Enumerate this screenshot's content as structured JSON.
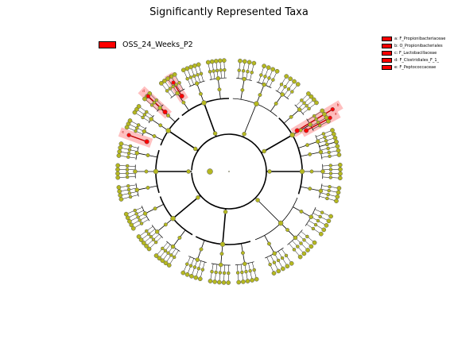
{
  "title": "Significantly Represented Taxa",
  "legend": {
    "group_label": "OSS_24_Weeks_P2",
    "group_color": "#ff0000"
  },
  "taxa_legend": [
    {
      "text": "a: F_Propionibacteriaceae",
      "letter": "a"
    },
    {
      "text": "b: O_Propionibacteriales",
      "letter": "b"
    },
    {
      "text": "c: F_Lactobacillaceae",
      "letter": "c"
    },
    {
      "text": "d: F_Clostridiales_F_1_",
      "letter": "d"
    },
    {
      "text": "e: F_Peptococcaceae",
      "letter": "e"
    }
  ],
  "colors": {
    "node": "#b5b820",
    "highlight_node": "#ff0000",
    "clade_shade": "#ffb6b6",
    "edge": "#000000"
  }
}
